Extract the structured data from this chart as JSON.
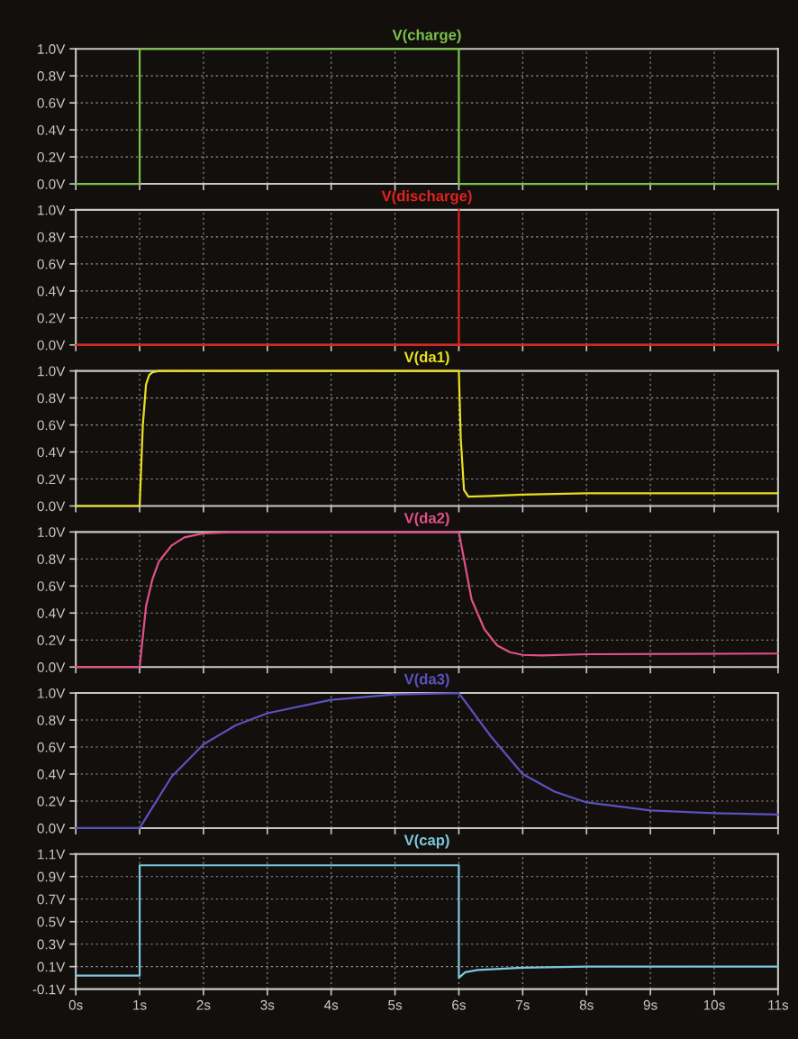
{
  "chart_data": [
    {
      "type": "line",
      "title": "V(charge)",
      "tick_labels": "y",
      "grid": true,
      "xlim": [
        0,
        11
      ],
      "xticks": [
        0,
        1,
        2,
        3,
        4,
        5,
        6,
        7,
        8,
        9,
        10,
        11
      ],
      "ylim": [
        0,
        1
      ],
      "yticks": [
        {
          "value": 0,
          "label": "0.0V"
        },
        {
          "value": 0.2,
          "label": "0.2V"
        },
        {
          "value": 0.4,
          "label": "0.4V"
        },
        {
          "value": 0.6,
          "label": "0.6V"
        },
        {
          "value": 0.8,
          "label": "0.8V"
        },
        {
          "value": 1,
          "label": "1.0V"
        }
      ],
      "series": [
        {
          "color": "#7cc04a",
          "x": [
            0,
            1,
            1,
            6,
            6,
            11
          ],
          "values": [
            0,
            0,
            1,
            1,
            0,
            0
          ]
        }
      ]
    },
    {
      "type": "line",
      "title": "V(discharge)",
      "tick_labels": "y",
      "grid": true,
      "xlim": [
        0,
        11
      ],
      "xticks": [
        0,
        1,
        2,
        3,
        4,
        5,
        6,
        7,
        8,
        9,
        10,
        11
      ],
      "ylim": [
        0,
        1
      ],
      "yticks": [
        {
          "value": 0,
          "label": "0.0V"
        },
        {
          "value": 0.2,
          "label": "0.2V"
        },
        {
          "value": 0.4,
          "label": "0.4V"
        },
        {
          "value": 0.6,
          "label": "0.6V"
        },
        {
          "value": 0.8,
          "label": "0.8V"
        },
        {
          "value": 1,
          "label": "1.0V"
        }
      ],
      "series": [
        {
          "color": "#e0231e",
          "x": [
            0,
            6,
            6,
            6,
            11
          ],
          "values": [
            0,
            0,
            1,
            0,
            0
          ]
        }
      ]
    },
    {
      "type": "line",
      "title": "V(da1)",
      "tick_labels": "y",
      "grid": true,
      "xlim": [
        0,
        11
      ],
      "xticks": [
        0,
        1,
        2,
        3,
        4,
        5,
        6,
        7,
        8,
        9,
        10,
        11
      ],
      "ylim": [
        0,
        1
      ],
      "yticks": [
        {
          "value": 0,
          "label": "0.0V"
        },
        {
          "value": 0.2,
          "label": "0.2V"
        },
        {
          "value": 0.4,
          "label": "0.4V"
        },
        {
          "value": 0.6,
          "label": "0.6V"
        },
        {
          "value": 0.8,
          "label": "0.8V"
        },
        {
          "value": 1,
          "label": "1.0V"
        }
      ],
      "series": [
        {
          "color": "#e8e020",
          "x": [
            0,
            1,
            1.05,
            1.1,
            1.15,
            1.2,
            1.3,
            6,
            6.03,
            6.08,
            6.15,
            6.5,
            7,
            8,
            11
          ],
          "values": [
            0,
            0,
            0.6,
            0.9,
            0.97,
            0.99,
            1,
            1,
            0.5,
            0.12,
            0.07,
            0.075,
            0.085,
            0.095,
            0.095
          ]
        }
      ]
    },
    {
      "type": "line",
      "title": "V(da2)",
      "tick_labels": "y",
      "grid": true,
      "xlim": [
        0,
        11
      ],
      "xticks": [
        0,
        1,
        2,
        3,
        4,
        5,
        6,
        7,
        8,
        9,
        10,
        11
      ],
      "ylim": [
        0,
        1
      ],
      "yticks": [
        {
          "value": 0,
          "label": "0.0V"
        },
        {
          "value": 0.2,
          "label": "0.2V"
        },
        {
          "value": 0.4,
          "label": "0.4V"
        },
        {
          "value": 0.6,
          "label": "0.6V"
        },
        {
          "value": 0.8,
          "label": "0.8V"
        },
        {
          "value": 1,
          "label": "1.0V"
        }
      ],
      "series": [
        {
          "color": "#e0508a",
          "x": [
            0,
            1,
            1.1,
            1.2,
            1.3,
            1.5,
            1.7,
            2,
            2.5,
            6,
            6.1,
            6.2,
            6.4,
            6.6,
            6.8,
            7,
            7.3,
            8,
            11
          ],
          "values": [
            0,
            0,
            0.45,
            0.65,
            0.78,
            0.9,
            0.96,
            0.99,
            1,
            1,
            0.75,
            0.5,
            0.28,
            0.16,
            0.11,
            0.09,
            0.085,
            0.095,
            0.1
          ]
        }
      ]
    },
    {
      "type": "line",
      "title": "V(da3)",
      "tick_labels": "y",
      "grid": true,
      "xlim": [
        0,
        11
      ],
      "xticks": [
        0,
        1,
        2,
        3,
        4,
        5,
        6,
        7,
        8,
        9,
        10,
        11
      ],
      "ylim": [
        0,
        1
      ],
      "yticks": [
        {
          "value": 0,
          "label": "0.0V"
        },
        {
          "value": 0.2,
          "label": "0.2V"
        },
        {
          "value": 0.4,
          "label": "0.4V"
        },
        {
          "value": 0.6,
          "label": "0.6V"
        },
        {
          "value": 0.8,
          "label": "0.8V"
        },
        {
          "value": 1,
          "label": "1.0V"
        }
      ],
      "series": [
        {
          "color": "#5a52c0",
          "x": [
            0,
            1,
            1.5,
            2,
            2.5,
            3,
            4,
            5,
            6,
            6.5,
            7,
            7.5,
            8,
            9,
            10,
            11
          ],
          "values": [
            0,
            0,
            0.38,
            0.62,
            0.76,
            0.85,
            0.95,
            0.99,
            1,
            0.68,
            0.4,
            0.27,
            0.19,
            0.13,
            0.11,
            0.1
          ]
        }
      ]
    },
    {
      "type": "line",
      "title": "V(cap)",
      "grid": true,
      "xlim": [
        0,
        11
      ],
      "xticks": [
        {
          "value": 0,
          "label": "0s"
        },
        {
          "value": 1,
          "label": "1s"
        },
        {
          "value": 2,
          "label": "2s"
        },
        {
          "value": 3,
          "label": "3s"
        },
        {
          "value": 4,
          "label": "4s"
        },
        {
          "value": 5,
          "label": "5s"
        },
        {
          "value": 6,
          "label": "6s"
        },
        {
          "value": 7,
          "label": "7s"
        },
        {
          "value": 8,
          "label": "8s"
        },
        {
          "value": 9,
          "label": "9s"
        },
        {
          "value": 10,
          "label": "10s"
        },
        {
          "value": 11,
          "label": "11s"
        }
      ],
      "ylim": [
        -0.1,
        1.1
      ],
      "yticks": [
        {
          "value": -0.1,
          "label": "-0.1V"
        },
        {
          "value": 0.1,
          "label": "0.1V"
        },
        {
          "value": 0.3,
          "label": "0.3V"
        },
        {
          "value": 0.5,
          "label": "0.5V"
        },
        {
          "value": 0.7,
          "label": "0.7V"
        },
        {
          "value": 0.9,
          "label": "0.9V"
        },
        {
          "value": 1.1,
          "label": "1.1V"
        }
      ],
      "series": [
        {
          "color": "#7ec8dc",
          "x": [
            0,
            1,
            1,
            6,
            6,
            6.1,
            6.3,
            7,
            8,
            11
          ],
          "values": [
            0.02,
            0.02,
            1,
            1,
            0.0,
            0.05,
            0.07,
            0.09,
            0.1,
            0.1
          ]
        }
      ]
    }
  ]
}
